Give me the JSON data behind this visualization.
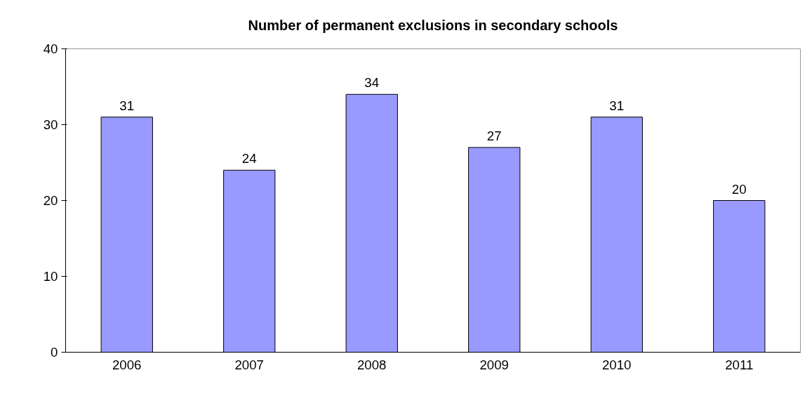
{
  "chart_data": {
    "type": "bar",
    "title": "Number of permanent exclusions in secondary schools",
    "categories": [
      "2006",
      "2007",
      "2008",
      "2009",
      "2010",
      "2011"
    ],
    "values": [
      31,
      24,
      34,
      27,
      31,
      20
    ],
    "color": "#9999ff",
    "ylim": [
      0,
      40
    ],
    "yticks": [
      0,
      10,
      20,
      30,
      40
    ],
    "grid": false,
    "data_labels": true
  }
}
